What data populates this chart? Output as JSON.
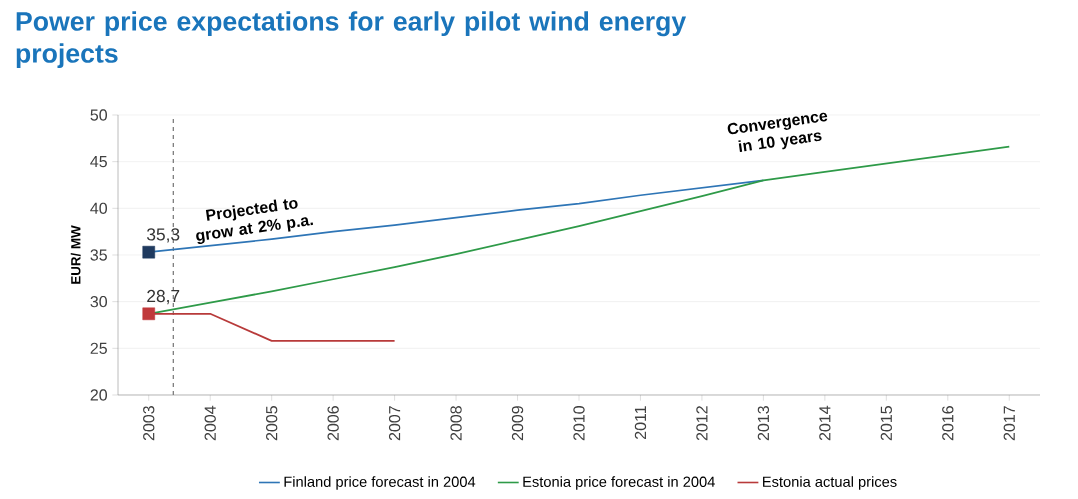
{
  "chart_data": {
    "type": "line",
    "title": "Power price expectations for early pilot wind energy projects",
    "ylabel": "EUR/ MW",
    "xlim": [
      2002.5,
      2017.5
    ],
    "xticks": [
      2003,
      2004,
      2005,
      2006,
      2007,
      2008,
      2009,
      2010,
      2011,
      2012,
      2013,
      2014,
      2015,
      2016,
      2017
    ],
    "ylim": [
      20,
      50
    ],
    "yticks": [
      20,
      25,
      30,
      35,
      40,
      45,
      50
    ],
    "grid": "y",
    "legend": "bottom",
    "annotations": [
      "Projected to grow at 2% p.a.",
      "Convergence in 10 years"
    ],
    "ref_lines": [
      {
        "axis": "x",
        "value": 2003.4,
        "color": "#808080",
        "line_style": "dashed"
      }
    ],
    "series": [
      {
        "name": "Finland price forecast in 2004",
        "color": "#2e75b6",
        "x": [
          2003,
          2004,
          2005,
          2006,
          2007,
          2008,
          2009,
          2010,
          2011,
          2012,
          2013
        ],
        "values": [
          35.3,
          36.0,
          36.7,
          37.5,
          38.2,
          39.0,
          39.8,
          40.5,
          41.4,
          42.2,
          43.0
        ]
      },
      {
        "name": "Estonia price forecast in 2004",
        "color": "#2e9a48",
        "x": [
          2003,
          2004,
          2005,
          2006,
          2007,
          2008,
          2009,
          2010,
          2011,
          2012,
          2013,
          2014,
          2015,
          2016,
          2017
        ],
        "values": [
          28.7,
          29.9,
          31.1,
          32.4,
          33.7,
          35.1,
          36.6,
          38.1,
          39.7,
          41.3,
          43.0,
          43.9,
          44.8,
          45.7,
          46.6
        ]
      },
      {
        "name": "Estonia actual prices",
        "color": "#b83a3a",
        "x": [
          2003,
          2004,
          2005,
          2006,
          2007
        ],
        "values": [
          28.7,
          28.7,
          25.8,
          25.8,
          25.8
        ]
      },
      {
        "type": "scatter",
        "marker": "square",
        "color": "#1f3a5f",
        "x": [
          2003
        ],
        "values": [
          35.3
        ],
        "value_labels": [
          "35,3"
        ]
      },
      {
        "type": "scatter",
        "marker": "square",
        "color": "#c0393b",
        "x": [
          2003
        ],
        "values": [
          28.7
        ],
        "value_labels": [
          "28,7"
        ]
      }
    ]
  }
}
